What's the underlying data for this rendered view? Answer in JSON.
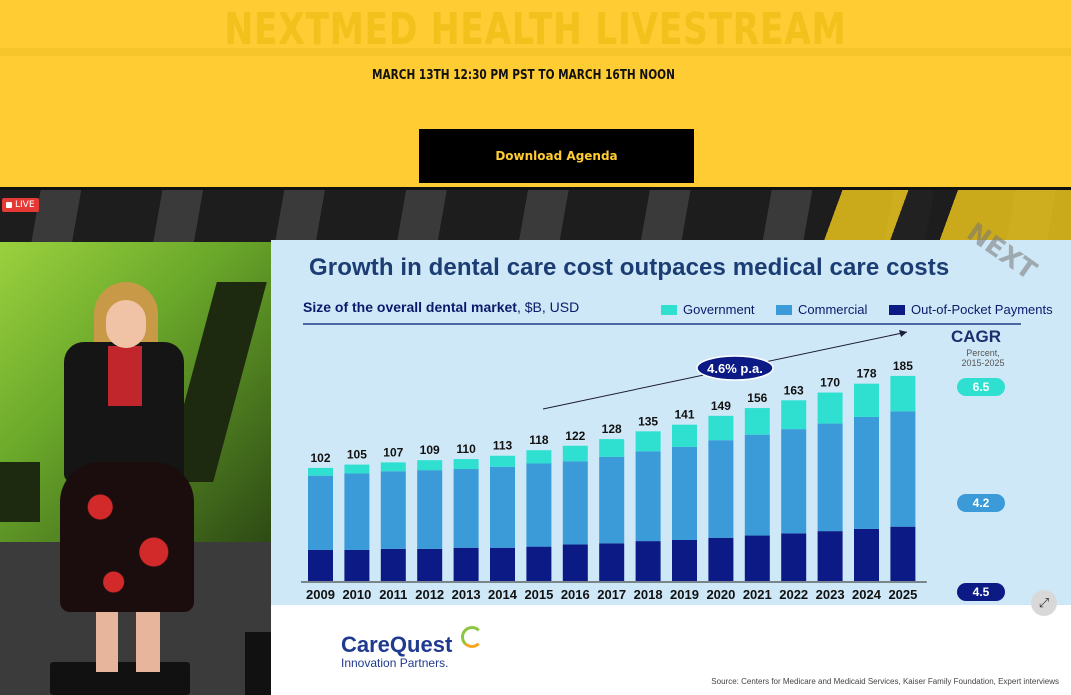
{
  "banner": {
    "title": "NEXTMED HEALTH LIVESTREAM",
    "date_text": "MARCH 13TH 12:30 PM PST TO MARCH 16TH NOON",
    "button_label": "Download Agenda"
  },
  "video": {
    "live_label": "LIVE",
    "expand_icon": "expand-icon"
  },
  "slide": {
    "title": "Growth in dental care cost outpaces medical care costs",
    "subtitle_bold": "Size of the overall dental market",
    "subtitle_rest": ", $B, USD",
    "corner_logo": "NEXT",
    "cagr": {
      "title": "CAGR",
      "subtitle_line1": "Percent,",
      "subtitle_line2": "2015-2025",
      "values": [
        "6.5",
        "4.2",
        "4.5"
      ]
    },
    "growth_label": "4.6% p.a.",
    "company_name": "CareQuest",
    "company_tagline": "Innovation Partners.",
    "source": "Source: Centers for Medicare and Medicaid Services, Kaiser Family Foundation, Expert interviews"
  },
  "colors": {
    "banner_bg": "#ffcd33",
    "government": "#2fe0d1",
    "commercial": "#3a9bd8",
    "out_of_pocket": "#0c1a86",
    "title_blue": "#1b3d73"
  },
  "chart_data": {
    "type": "bar",
    "stacked": true,
    "title": "Growth in dental care cost outpaces medical care costs",
    "ylabel": "Size of the overall dental market, $B, USD",
    "categories": [
      "2009",
      "2010",
      "2011",
      "2012",
      "2013",
      "2014",
      "2015",
      "2016",
      "2017",
      "2018",
      "2019",
      "2020",
      "2021",
      "2022",
      "2023",
      "2024",
      "2025"
    ],
    "totals": [
      102,
      105,
      107,
      109,
      110,
      113,
      118,
      122,
      128,
      135,
      141,
      149,
      156,
      163,
      170,
      178,
      185
    ],
    "series": [
      {
        "name": "Out-of-Pocket Payments",
        "color": "#0c1a86",
        "values": [
          28,
          28,
          29,
          29,
          30,
          30,
          31,
          33,
          34,
          36,
          37,
          39,
          41,
          43,
          45,
          47,
          49
        ]
      },
      {
        "name": "Commercial",
        "color": "#3a9bd8",
        "values": [
          67,
          69,
          70,
          71,
          71,
          73,
          75,
          75,
          78,
          81,
          84,
          88,
          91,
          94,
          97,
          101,
          104
        ]
      },
      {
        "name": "Government",
        "color": "#2fe0d1",
        "values": [
          7,
          8,
          8,
          9,
          9,
          10,
          12,
          14,
          16,
          18,
          20,
          22,
          24,
          26,
          28,
          30,
          32
        ]
      }
    ],
    "ylim": [
      0,
      200
    ],
    "legend": "top",
    "grid": false
  }
}
